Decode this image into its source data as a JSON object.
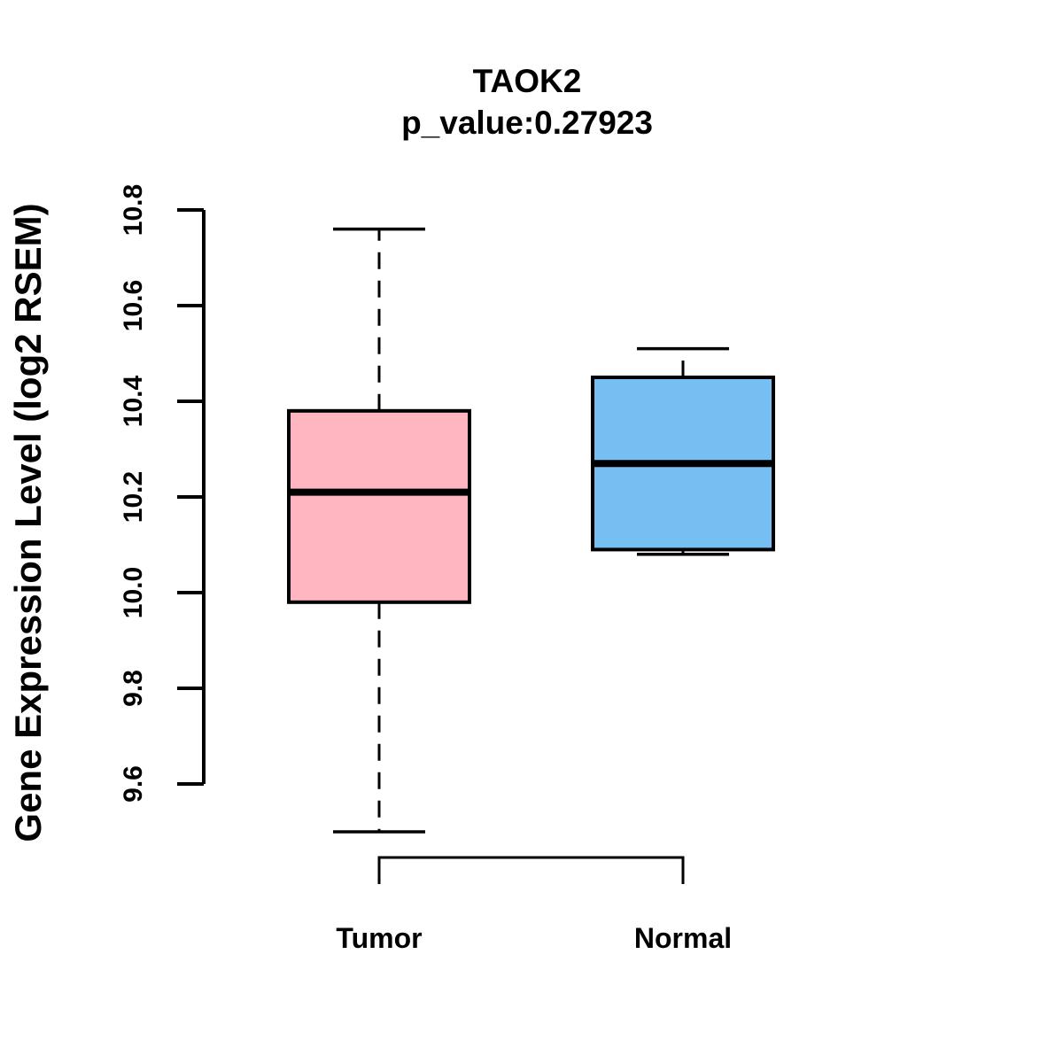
{
  "chart_data": {
    "type": "box",
    "title": "TAOK2",
    "subtitle": "p_value:0.27923",
    "ylabel": "Gene Expression Level (log2 RSEM)",
    "xlabel": "",
    "categories": [
      "Tumor",
      "Normal"
    ],
    "ylim": [
      9.6,
      10.8
    ],
    "yticks": [
      9.6,
      9.8,
      10.0,
      10.2,
      10.4,
      10.6,
      10.8
    ],
    "ytick_labels": [
      "9.6",
      "9.8",
      "10.0",
      "10.2",
      "10.4",
      "10.6",
      "10.8"
    ],
    "grid": false,
    "legend": "none",
    "series": [
      {
        "name": "Tumor",
        "color": "#FFB6C1",
        "whisker_low": 9.5,
        "q1": 9.98,
        "median": 10.21,
        "q3": 10.38,
        "whisker_high": 10.76
      },
      {
        "name": "Normal",
        "color": "#76BFF2",
        "whisker_low": 10.08,
        "q1": 10.09,
        "median": 10.27,
        "q3": 10.45,
        "whisker_high": 10.51
      }
    ]
  },
  "colors": {
    "stroke": "#000000",
    "background": "#FFFFFF",
    "tumor_fill": "#FFB6C1",
    "normal_fill": "#76BFF2"
  }
}
